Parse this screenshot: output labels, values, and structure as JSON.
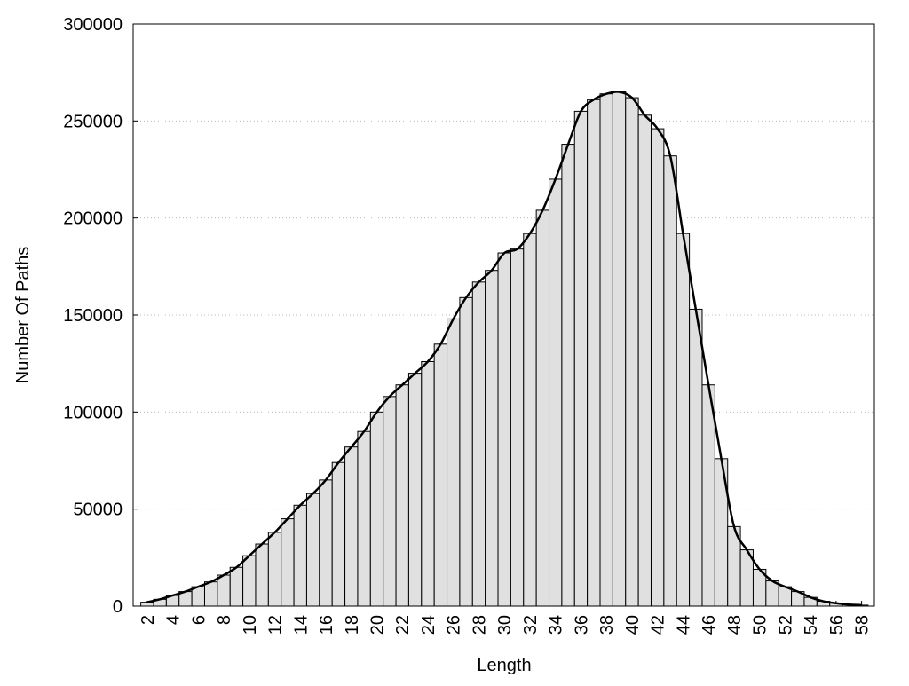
{
  "chart_data": {
    "type": "bar",
    "xlabel": "Length",
    "ylabel": "Number Of Paths",
    "x": [
      2,
      3,
      4,
      5,
      6,
      7,
      8,
      9,
      10,
      11,
      12,
      13,
      14,
      15,
      16,
      17,
      18,
      19,
      20,
      21,
      22,
      23,
      24,
      25,
      26,
      27,
      28,
      29,
      30,
      31,
      32,
      33,
      34,
      35,
      36,
      37,
      38,
      39,
      40,
      41,
      42,
      43,
      44,
      45,
      46,
      47,
      48,
      49,
      50,
      51,
      52,
      53,
      54,
      55,
      56,
      57,
      58
    ],
    "values": [
      2000,
      3500,
      5500,
      7500,
      10000,
      12500,
      16000,
      20000,
      26000,
      32000,
      38000,
      45000,
      52000,
      58000,
      65000,
      74000,
      82000,
      90000,
      100000,
      108000,
      114000,
      120000,
      126000,
      135000,
      148000,
      159000,
      167000,
      173000,
      182000,
      184000,
      192000,
      204000,
      220000,
      238000,
      255000,
      261000,
      264000,
      265000,
      262000,
      253000,
      246000,
      232000,
      192000,
      153000,
      114000,
      76000,
      41000,
      29000,
      19000,
      13000,
      10000,
      7500,
      4500,
      2500,
      1500,
      800,
      500
    ],
    "color": "#e0e0e0",
    "line_color": "#000000",
    "smooth_line": true,
    "xlim": [
      0.9,
      59
    ],
    "xticks": [
      2,
      4,
      6,
      8,
      10,
      12,
      14,
      16,
      18,
      20,
      22,
      24,
      26,
      28,
      30,
      32,
      34,
      36,
      38,
      40,
      42,
      44,
      46,
      48,
      50,
      52,
      54,
      56,
      58
    ],
    "ylim": [
      0,
      300000
    ],
    "yticks": [
      0,
      50000,
      100000,
      150000,
      200000,
      250000,
      300000
    ],
    "grid": true
  }
}
